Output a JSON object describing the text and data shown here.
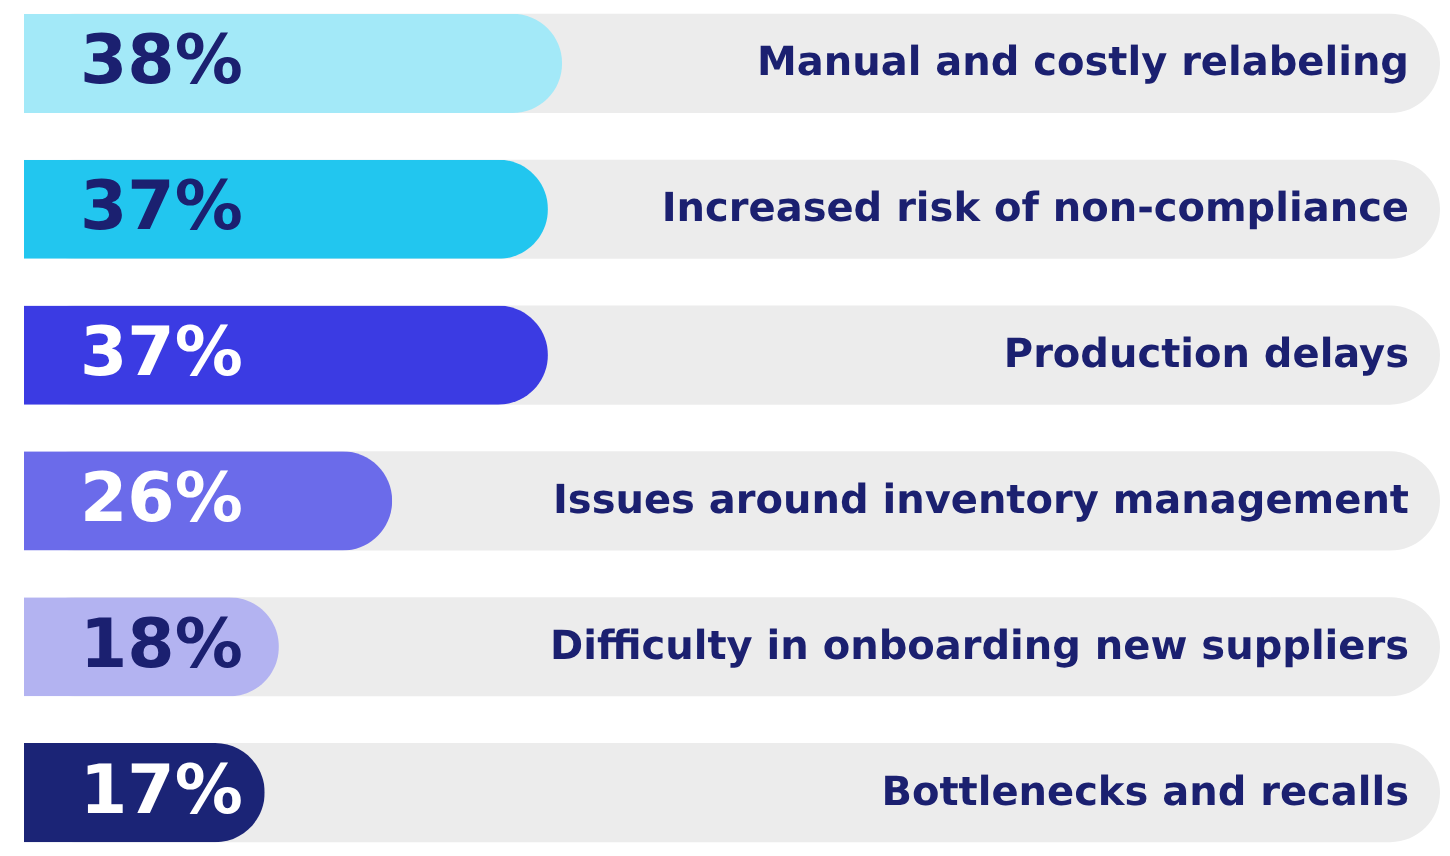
{
  "chart_data": {
    "type": "bar",
    "orientation": "horizontal",
    "categories": [
      "Manual and costly relabeling",
      "Increased risk of non-compliance",
      "Production delays",
      "Issues around inventory management",
      "Difficulty in onboarding new suppliers",
      "Bottlenecks and recalls"
    ],
    "values": [
      38,
      37,
      37,
      26,
      18,
      17
    ],
    "colors": [
      "#a3e9f8",
      "#22c6ef",
      "#3b3be3",
      "#6b6bea",
      "#b3b3f1",
      "#1b2476"
    ],
    "value_labels": [
      "38%",
      "37%",
      "37%",
      "26%",
      "18%",
      "17%"
    ],
    "xlim": [
      0,
      100
    ]
  }
}
